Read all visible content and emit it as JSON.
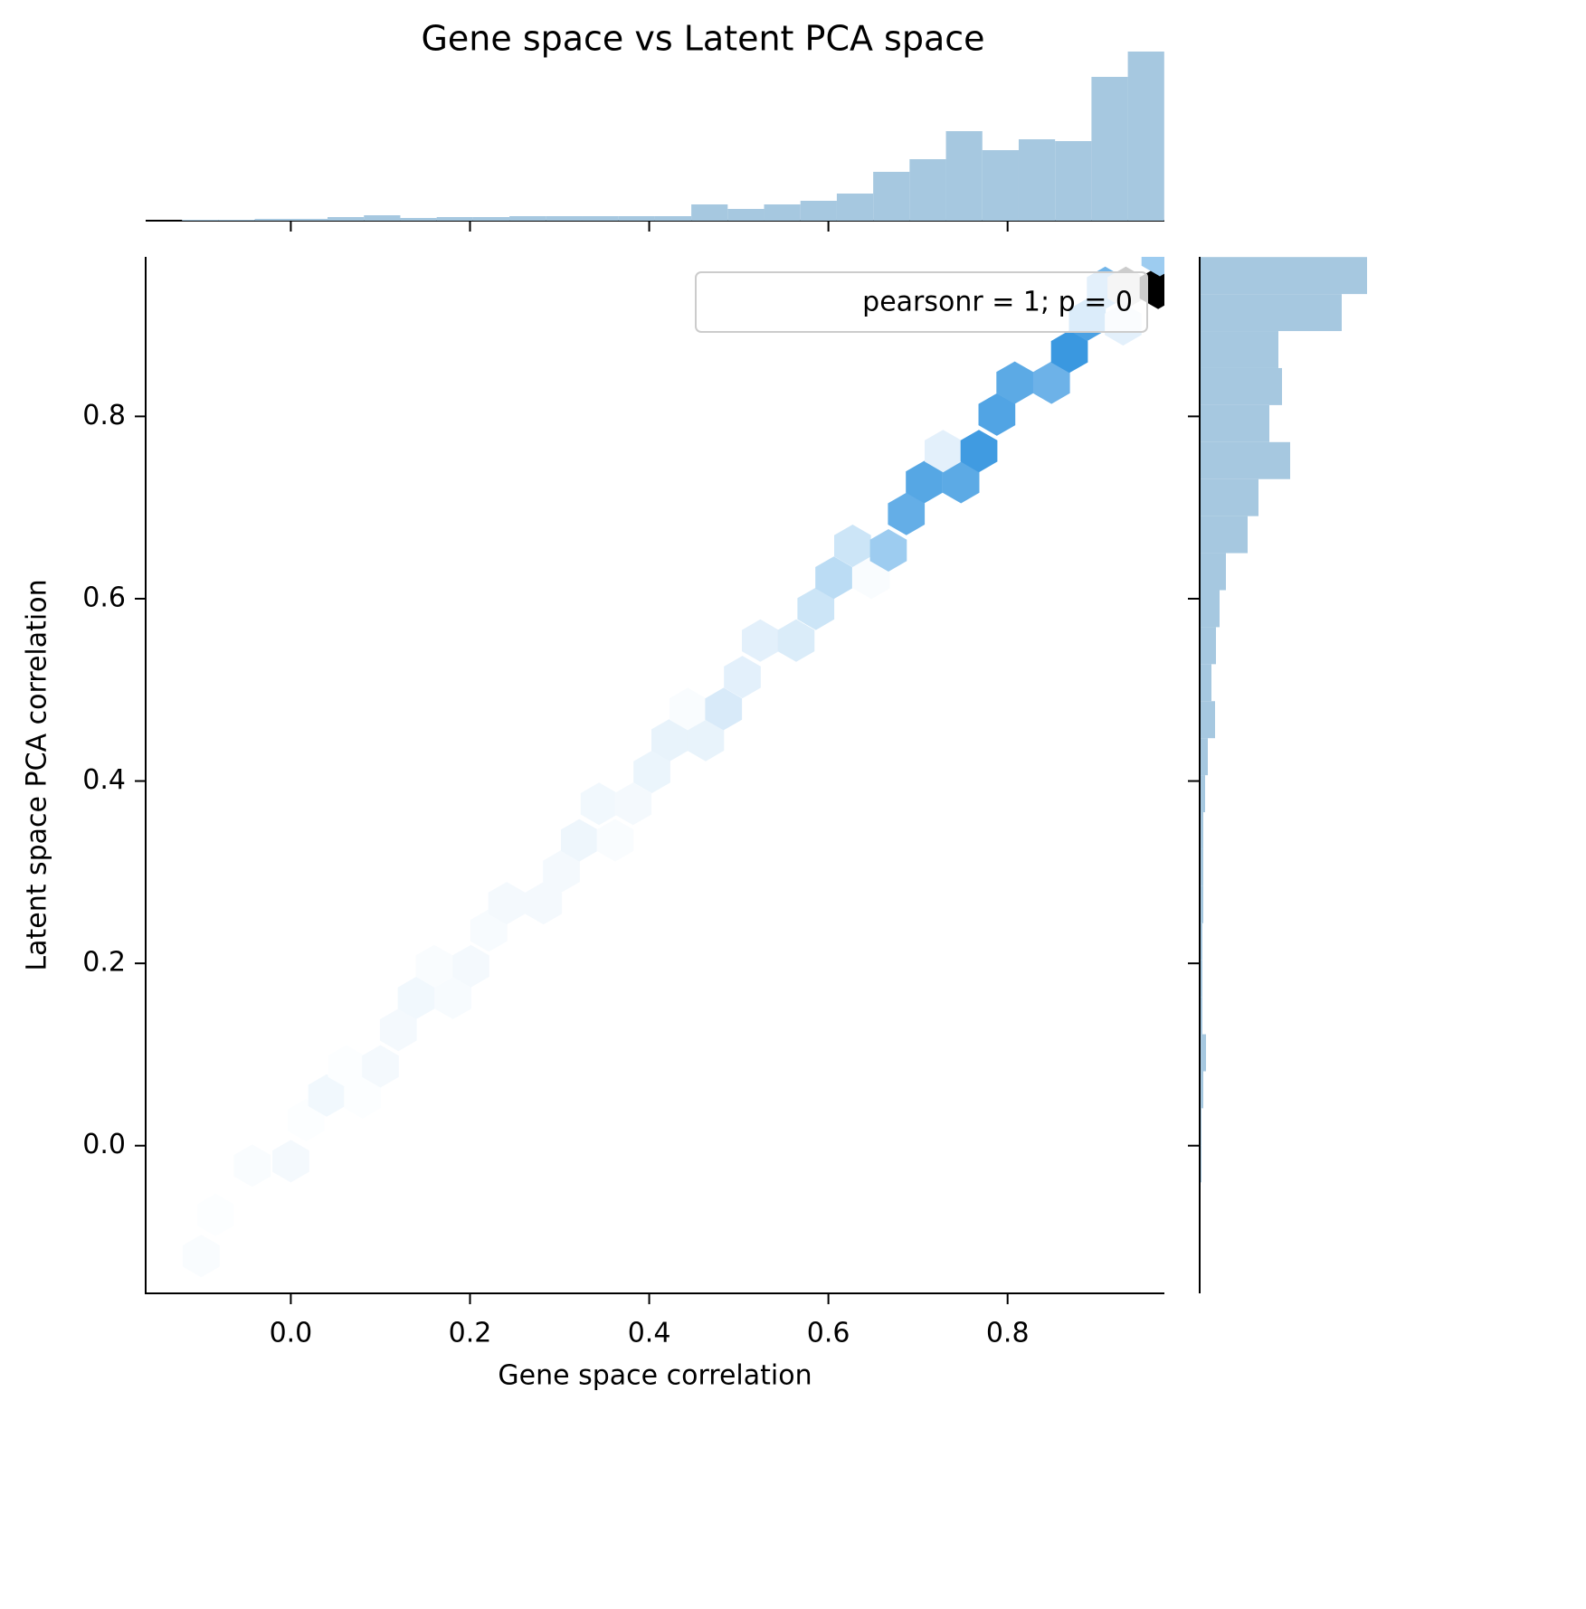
{
  "chart_data": {
    "type": "hexbin",
    "title": "Gene space vs Latent PCA space",
    "xlabel": "Gene space correlation",
    "ylabel": "Latent space PCA correlation",
    "legend_text": "pearsonr = 1; p = 0",
    "xlim": [
      -0.162,
      0.975
    ],
    "ylim": [
      -0.162,
      0.975
    ],
    "xticks": [
      {
        "value": 0,
        "label": "0.0"
      },
      0.2,
      0.4,
      0.6,
      0.8
    ],
    "yticks": [
      {
        "value": 0,
        "label": "0.0"
      },
      0.2,
      0.4,
      0.6,
      0.8
    ],
    "cmap": [
      "#ffffff",
      "#3a98e0",
      "#cccccc",
      "#000000"
    ],
    "hex_x": [
      -0.1,
      -0.084,
      -0.043,
      0.0,
      0.017,
      0.04,
      0.062,
      0.08,
      0.1,
      0.12,
      0.14,
      0.16,
      0.181,
      0.201,
      0.221,
      0.241,
      0.282,
      0.302,
      0.322,
      0.362,
      0.344,
      0.382,
      0.403,
      0.423,
      0.463,
      0.443,
      0.483,
      0.504,
      0.524,
      0.564,
      0.586,
      0.606,
      0.648,
      0.627,
      0.667,
      0.687,
      0.707,
      0.748,
      0.728,
      0.768,
      0.788,
      0.808,
      0.849,
      0.869,
      0.889,
      0.909,
      0.929,
      0.932,
      0.968,
      0.97
    ],
    "hex_y": [
      -0.121,
      -0.076,
      -0.022,
      -0.017,
      0.028,
      0.055,
      0.087,
      0.053,
      0.087,
      0.127,
      0.162,
      0.197,
      0.162,
      0.197,
      0.236,
      0.266,
      0.266,
      0.301,
      0.335,
      0.335,
      0.375,
      0.375,
      0.41,
      0.445,
      0.445,
      0.479,
      0.479,
      0.514,
      0.554,
      0.554,
      0.589,
      0.623,
      0.623,
      0.658,
      0.653,
      0.693,
      0.728,
      0.728,
      0.762,
      0.762,
      0.802,
      0.837,
      0.837,
      0.871,
      0.906,
      0.941,
      0.901,
      0.941,
      0.941,
      0.977
    ],
    "hex_counts": [
      2,
      1,
      2,
      4,
      1,
      5,
      1,
      1,
      4,
      4,
      5,
      2,
      3,
      4,
      3,
      4,
      4,
      4,
      6,
      2,
      5,
      4,
      7,
      8,
      8,
      2,
      14,
      10,
      10,
      13,
      18,
      24,
      2,
      18,
      35,
      55,
      60,
      58,
      10,
      68,
      62,
      58,
      52,
      70,
      64,
      50,
      10,
      140,
      210,
      35
    ],
    "hist_color": "#a6c8e0",
    "bins": [
      -0.162,
      -0.1214,
      -0.0808,
      -0.0402,
      0.0004,
      0.041,
      0.0816,
      0.1222,
      0.1628,
      0.2034,
      0.244,
      0.2846,
      0.3252,
      0.3658,
      0.4064,
      0.447,
      0.4876,
      0.5282,
      0.5688,
      0.6094,
      0.65,
      0.6906,
      0.7312,
      0.7718,
      0.8124,
      0.853,
      0.8936,
      0.9342,
      0.9748
    ],
    "x_counts": [
      0,
      1,
      1,
      2,
      2,
      4,
      6,
      3,
      4,
      4,
      5,
      5,
      5,
      5,
      5,
      18,
      13,
      18,
      22,
      30,
      54,
      68,
      99,
      78,
      90,
      88,
      159,
      187
    ],
    "y_counts": [
      0,
      0,
      0,
      1,
      1,
      3,
      6,
      2,
      2,
      2,
      3,
      3,
      3,
      5,
      8,
      16,
      12,
      17,
      21,
      28,
      52,
      64,
      99,
      76,
      90,
      86,
      156,
      184
    ]
  }
}
